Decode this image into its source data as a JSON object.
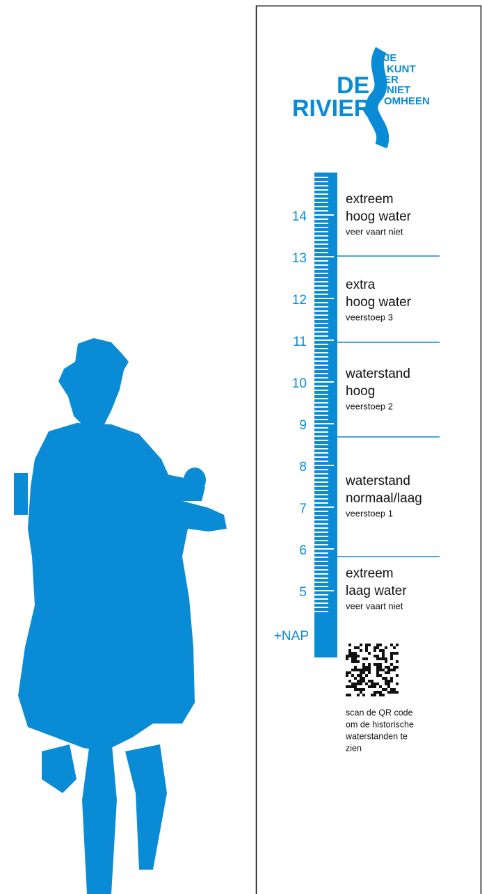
{
  "logo": {
    "de": "DE",
    "rivier": "RIVIER",
    "motto": [
      "JE",
      "KUNT",
      "ER",
      "NIET",
      "OMHEEN"
    ]
  },
  "scale": {
    "labels": [
      "14",
      "13",
      "12",
      "11",
      "10",
      "9",
      "8",
      "7",
      "6",
      "5",
      "+NAP"
    ]
  },
  "zones": [
    {
      "lines": [
        "extreem",
        "hoog water"
      ],
      "note": "veer vaart niet"
    },
    {
      "lines": [
        "extra",
        "hoog water"
      ],
      "note": "veerstoep 3"
    },
    {
      "lines": [
        "waterstand",
        "hoog"
      ],
      "note": "veerstoep 2"
    },
    {
      "lines": [
        "waterstand",
        "normaal/laag"
      ],
      "note": "veerstoep 1"
    },
    {
      "lines": [
        "extreem",
        "laag water"
      ],
      "note": "veer vaart niet"
    }
  ],
  "qr_caption": [
    "scan de QR code",
    "om de historische",
    "waterstanden te",
    "zien"
  ]
}
